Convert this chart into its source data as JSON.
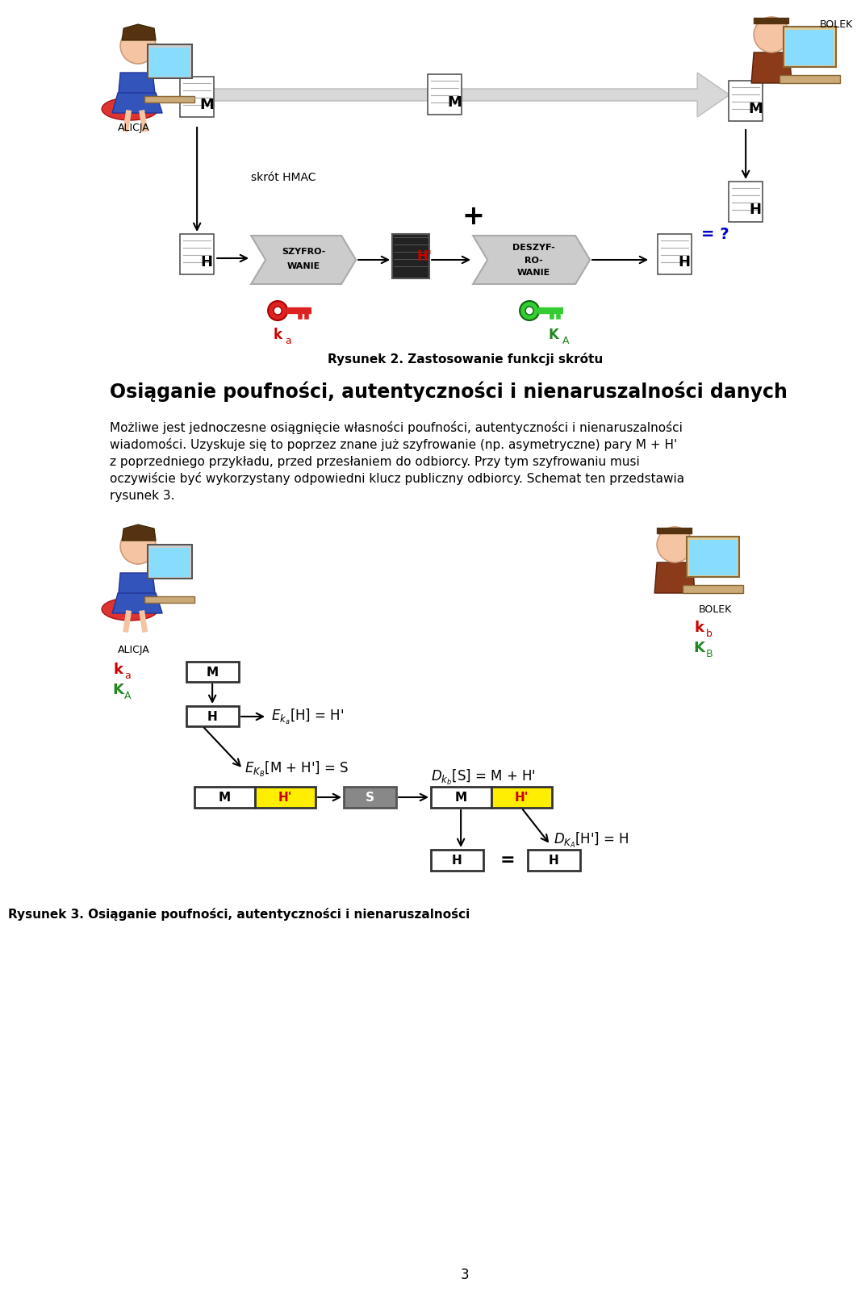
{
  "title2": "Rysunek 2. Zastosowanie funkcji skrótu",
  "section_title": "Osiąganie poufności, autentyczności i nienaruszalności danych",
  "body_line1": "Możliwe jest jednoczesne osiągnięcie własności poufności, autentyczności i nienaruszalności",
  "body_line2": "wiadomości. Uzyskuje się to poprzez znane już szyfrowanie (np. asymetryczne) pary M + H'",
  "body_line3": "z poprzedniego przykładu, przed przesłaniem do odbiorcy. Przy tym szyfrowaniu musi",
  "body_line4": "oczywiście być wykorzystany odpowiedni klucz publiczny odbiorcy. Schemat ten przedstawia",
  "body_line5": "rysunek 3.",
  "fig3_caption": "Rysunek 3. Osiąganie poufności, autentyczności i nienaruszalności",
  "page_num": "3",
  "bg_color": "#ffffff",
  "red": "#cc0000",
  "green": "#228822",
  "blue": "#0000cc",
  "light_gray": "#cccccc",
  "mid_gray": "#888888",
  "dark_gray": "#555555",
  "yellow": "#ffee00",
  "doc_line_color": "#aaaaaa",
  "szyfr_text": "SZYFRO-\nWANIE",
  "deszyfr_text": "DESZYF-\nRO-\nWANIE"
}
